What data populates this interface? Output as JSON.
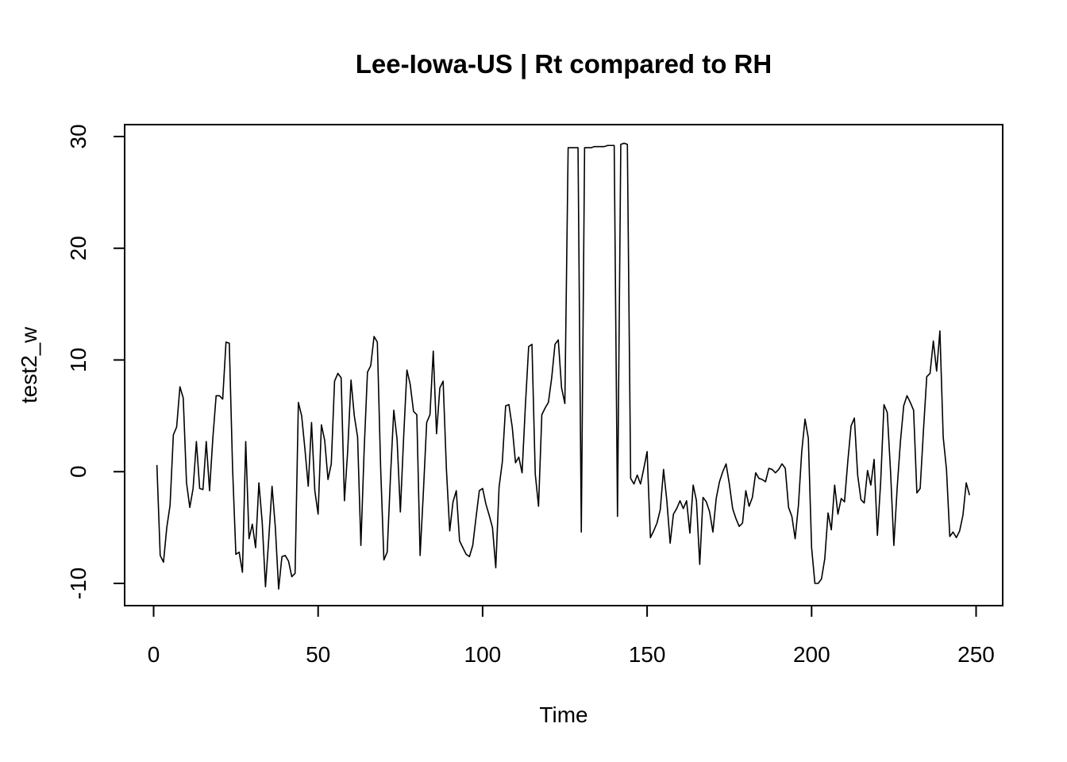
{
  "chart_data": {
    "type": "line",
    "title": "Lee-Iowa-US | Rt compared to RH",
    "xlabel": "Time",
    "ylabel": "test2_w",
    "xlim": [
      1,
      250
    ],
    "ylim": [
      -10.5,
      30
    ],
    "xticks": [
      0,
      50,
      100,
      150,
      200,
      250
    ],
    "yticks": [
      -10,
      0,
      10,
      20,
      30
    ],
    "grid": false,
    "legend": "none",
    "line_color": "#000000",
    "series": [
      {
        "values": [
          0.6,
          -7.5,
          -8.1,
          -5.0,
          -3.0,
          3.3,
          4.0,
          7.6,
          6.6,
          -1.0,
          -3.2,
          -1.5,
          2.7,
          -1.5,
          -1.6,
          2.7,
          -1.7,
          3.0,
          6.8,
          6.8,
          6.5,
          11.6,
          11.5,
          0.3,
          -7.4,
          -7.2,
          -9.0,
          2.7,
          -6.0,
          -4.7,
          -6.8,
          -1.0,
          -4.5,
          -10.3,
          -6.0,
          -1.3,
          -5.0,
          -10.5,
          -7.6,
          -7.5,
          -8.0,
          -9.4,
          -9.1,
          6.2,
          5.0,
          2.0,
          -1.3,
          4.4,
          -1.7,
          -3.8,
          4.2,
          2.8,
          -0.7,
          0.7,
          8.1,
          8.8,
          8.4,
          -2.6,
          1.9,
          8.2,
          5.0,
          3.1,
          -6.6,
          2.0,
          8.9,
          9.5,
          12.1,
          11.6,
          0.4,
          -7.9,
          -7.2,
          -0.4,
          5.5,
          2.9,
          -3.6,
          3.1,
          9.1,
          7.8,
          5.4,
          5.1,
          -7.5,
          -1.8,
          4.4,
          5.1,
          10.8,
          3.4,
          7.5,
          8.1,
          0.2,
          -5.3,
          -2.7,
          -1.7,
          -6.2,
          -6.8,
          -7.4,
          -7.6,
          -6.6,
          -4.1,
          -1.7,
          -1.5,
          -2.9,
          -3.9,
          -5.0,
          -8.6,
          -1.4,
          0.9,
          5.9,
          6.0,
          4.0,
          0.8,
          1.3,
          -0.1,
          5.9,
          11.2,
          11.4,
          -0.2,
          -3.1,
          5.1,
          5.7,
          6.2,
          8.4,
          11.4,
          11.8,
          7.5,
          6.1,
          29.0,
          29.0,
          29.0,
          29.0,
          -5.4,
          29.0,
          29.0,
          29.0,
          29.1,
          29.1,
          29.1,
          29.1,
          29.2,
          29.2,
          29.2,
          -4.0,
          29.3,
          29.4,
          29.3,
          -0.6,
          -1.1,
          -0.3,
          -1.1,
          0.3,
          1.8,
          -5.9,
          -5.3,
          -4.6,
          -3.4,
          0.2,
          -2.6,
          -6.4,
          -3.8,
          -3.3,
          -2.6,
          -3.3,
          -2.6,
          -5.5,
          -1.2,
          -2.6,
          -8.3,
          -2.3,
          -2.7,
          -3.6,
          -5.4,
          -2.4,
          -0.9,
          0.0,
          0.7,
          -1.1,
          -3.3,
          -4.2,
          -4.9,
          -4.6,
          -1.7,
          -3.1,
          -2.3,
          -0.1,
          -0.6,
          -0.7,
          -0.9,
          0.3,
          0.2,
          -0.1,
          0.2,
          0.7,
          0.3,
          -3.2,
          -4.0,
          -6.0,
          -3.0,
          1.8,
          4.7,
          3.0,
          -6.8,
          -10.0,
          -10.0,
          -9.6,
          -7.8,
          -3.7,
          -5.2,
          -1.2,
          -3.8,
          -2.4,
          -2.7,
          0.9,
          4.1,
          4.8,
          -0.3,
          -2.5,
          -2.8,
          0.1,
          -1.2,
          1.1,
          -5.7,
          -0.9,
          6.0,
          5.3,
          0.0,
          -6.6,
          -1.5,
          2.7,
          5.9,
          6.8,
          6.2,
          5.5,
          -1.9,
          -1.5,
          3.7,
          8.5,
          8.8,
          11.7,
          9.0,
          12.6,
          3.1,
          0.2,
          -5.8,
          -5.4,
          -5.9,
          -5.3,
          -3.9,
          -1.0,
          -2.1
        ]
      }
    ]
  }
}
